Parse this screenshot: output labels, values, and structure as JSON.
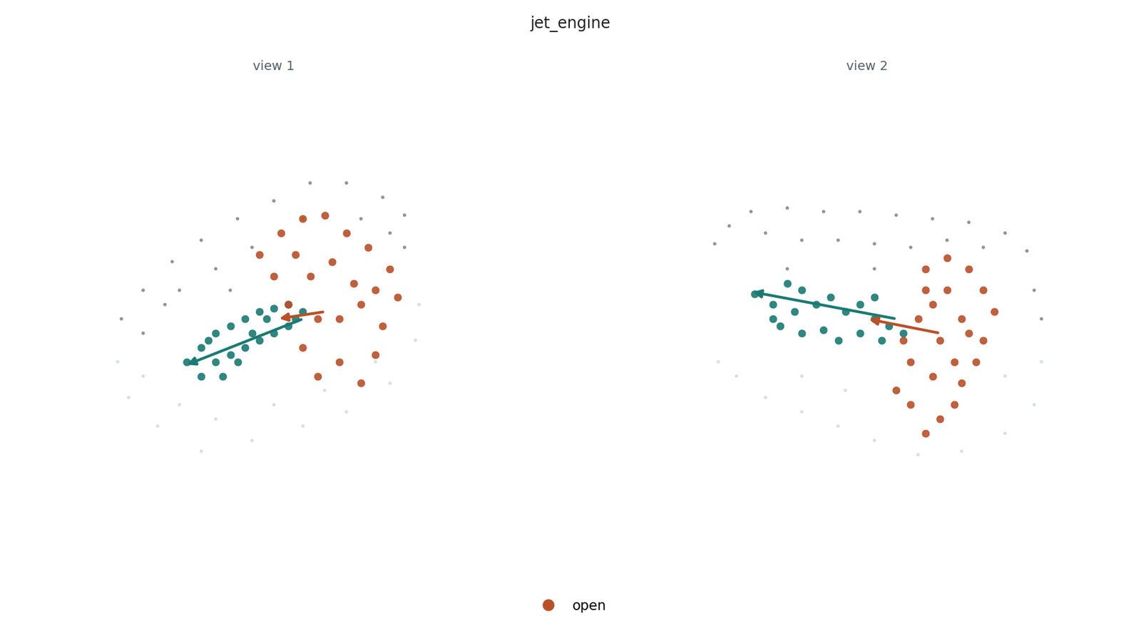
{
  "chart_data": {
    "type": "scatter",
    "title": "jet_engine",
    "legend": "lower center",
    "tick_labels": false,
    "charts": [
      {
        "type": "scatter",
        "title": "view 1",
        "xlim": [
          50,
          710
        ],
        "ylim": [
          0,
          600
        ],
        "series": [
          {
            "color": "#3a3a46",
            "marker": ".",
            "x": [
              170,
              200,
              240,
              280,
              330,
              380,
              430,
              480,
              530,
              560,
              560,
              250,
              300,
              350,
              420,
              500,
              540,
              200,
              230,
              320
            ],
            "y": [
              260,
              300,
              340,
              370,
              400,
              425,
              450,
              450,
              430,
              405,
              360,
              300,
              330,
              360,
              400,
              400,
              380,
              240,
              280,
              300
            ]
          },
          {
            "color": "#b8c8cc",
            "marker": ".",
            "x": [
              165,
              180,
              220,
              280,
              350,
              420,
              480,
              540,
              575,
              580,
              300,
              380,
              450,
              250,
              200,
              520
            ],
            "y": [
              200,
              150,
              110,
              75,
              90,
              110,
              130,
              170,
              230,
              280,
              120,
              140,
              160,
              140,
              180,
              200
            ]
          },
          {
            "color": "#1a7a72",
            "marker": "o",
            "x": [
              260,
              280,
              300,
              320,
              340,
              360,
              380,
              400,
              420,
              300,
              320,
              340,
              360,
              380,
              400,
              280,
              310,
              330,
              350,
              370,
              410,
              290
            ],
            "y": [
              200,
              220,
              240,
              250,
              260,
              270,
              275,
              280,
              270,
              200,
              210,
              220,
              230,
              240,
              250,
              180,
              180,
              200,
              240,
              260,
              260,
              230
            ]
          },
          {
            "name": "open",
            "color": "#b8502a",
            "marker": "o",
            "x": [
              390,
              420,
              450,
              480,
              510,
              540,
              550,
              530,
              520,
              500,
              470,
              440,
              420,
              400,
              380,
              360,
              430,
              460,
              490,
              470,
              440,
              500,
              520,
              410
            ],
            "y": [
              380,
              400,
              405,
              380,
              360,
              330,
              290,
              250,
              210,
              170,
              200,
              180,
              220,
              280,
              320,
              350,
              320,
              340,
              310,
              260,
              260,
              280,
              300,
              350
            ]
          }
        ],
        "arrows": [
          {
            "color": "#1a7a72",
            "x": [
              420,
              258
            ],
            "y": [
              260,
              195
            ]
          },
          {
            "color": "#b8502a",
            "x": [
              450,
              385
            ],
            "y": [
              270,
              260
            ]
          }
        ]
      },
      {
        "type": "scatter",
        "title": "view 2",
        "xlim": [
          860,
          1520
        ],
        "ylim": [
          0,
          600
        ],
        "series": [
          {
            "color": "#3a3a46",
            "marker": ".",
            "x": [
              980,
              1000,
              1030,
              1080,
              1130,
              1180,
              1230,
              1280,
              1330,
              1380,
              1410,
              1050,
              1100,
              1150,
              1200,
              1250,
              1300,
              1350,
              1420,
              1430,
              1080,
              1200
            ],
            "y": [
              365,
              390,
              410,
              415,
              410,
              410,
              405,
              400,
              395,
              380,
              355,
              380,
              370,
              370,
              365,
              360,
              370,
              360,
              300,
              260,
              330,
              330
            ]
          },
          {
            "color": "#b8c8cc",
            "marker": ".",
            "x": [
              985,
              1010,
              1050,
              1100,
              1150,
              1200,
              1260,
              1320,
              1380,
              1420,
              1430,
              1100,
              1160,
              1380
            ],
            "y": [
              200,
              180,
              150,
              130,
              110,
              90,
              70,
              75,
              100,
              140,
              200,
              180,
              160,
              180
            ]
          },
          {
            "color": "#1a7a72",
            "marker": "o",
            "x": [
              1035,
              1060,
              1080,
              1100,
              1120,
              1140,
              1160,
              1180,
              1200,
              1220,
              1240,
              1070,
              1100,
              1130,
              1150,
              1180,
              1210,
              1060,
              1090,
              1200
            ],
            "y": [
              295,
              280,
              310,
              300,
              280,
              290,
              270,
              280,
              260,
              250,
              240,
              250,
              240,
              245,
              230,
              240,
              230,
              260,
              270,
              290
            ]
          },
          {
            "name": "open",
            "color": "#b8502a",
            "marker": "o",
            "x": [
              1270,
              1300,
              1330,
              1350,
              1365,
              1350,
              1340,
              1320,
              1310,
              1290,
              1270,
              1250,
              1230,
              1250,
              1240,
              1260,
              1280,
              1300,
              1320,
              1290,
              1310,
              1280,
              1330,
              1270
            ],
            "y": [
              330,
              345,
              330,
              300,
              270,
              230,
              200,
              170,
              140,
              120,
              100,
              140,
              160,
              200,
              230,
              260,
              280,
              300,
              260,
              230,
              200,
              180,
              240,
              300
            ]
          }
        ],
        "arrows": [
          {
            "color": "#1a7a72",
            "x": [
              1230,
              1030
            ],
            "y": [
              260,
              298
            ]
          },
          {
            "color": "#b8502a",
            "x": [
              1290,
              1190
            ],
            "y": [
              240,
              260
            ]
          }
        ]
      }
    ]
  }
}
